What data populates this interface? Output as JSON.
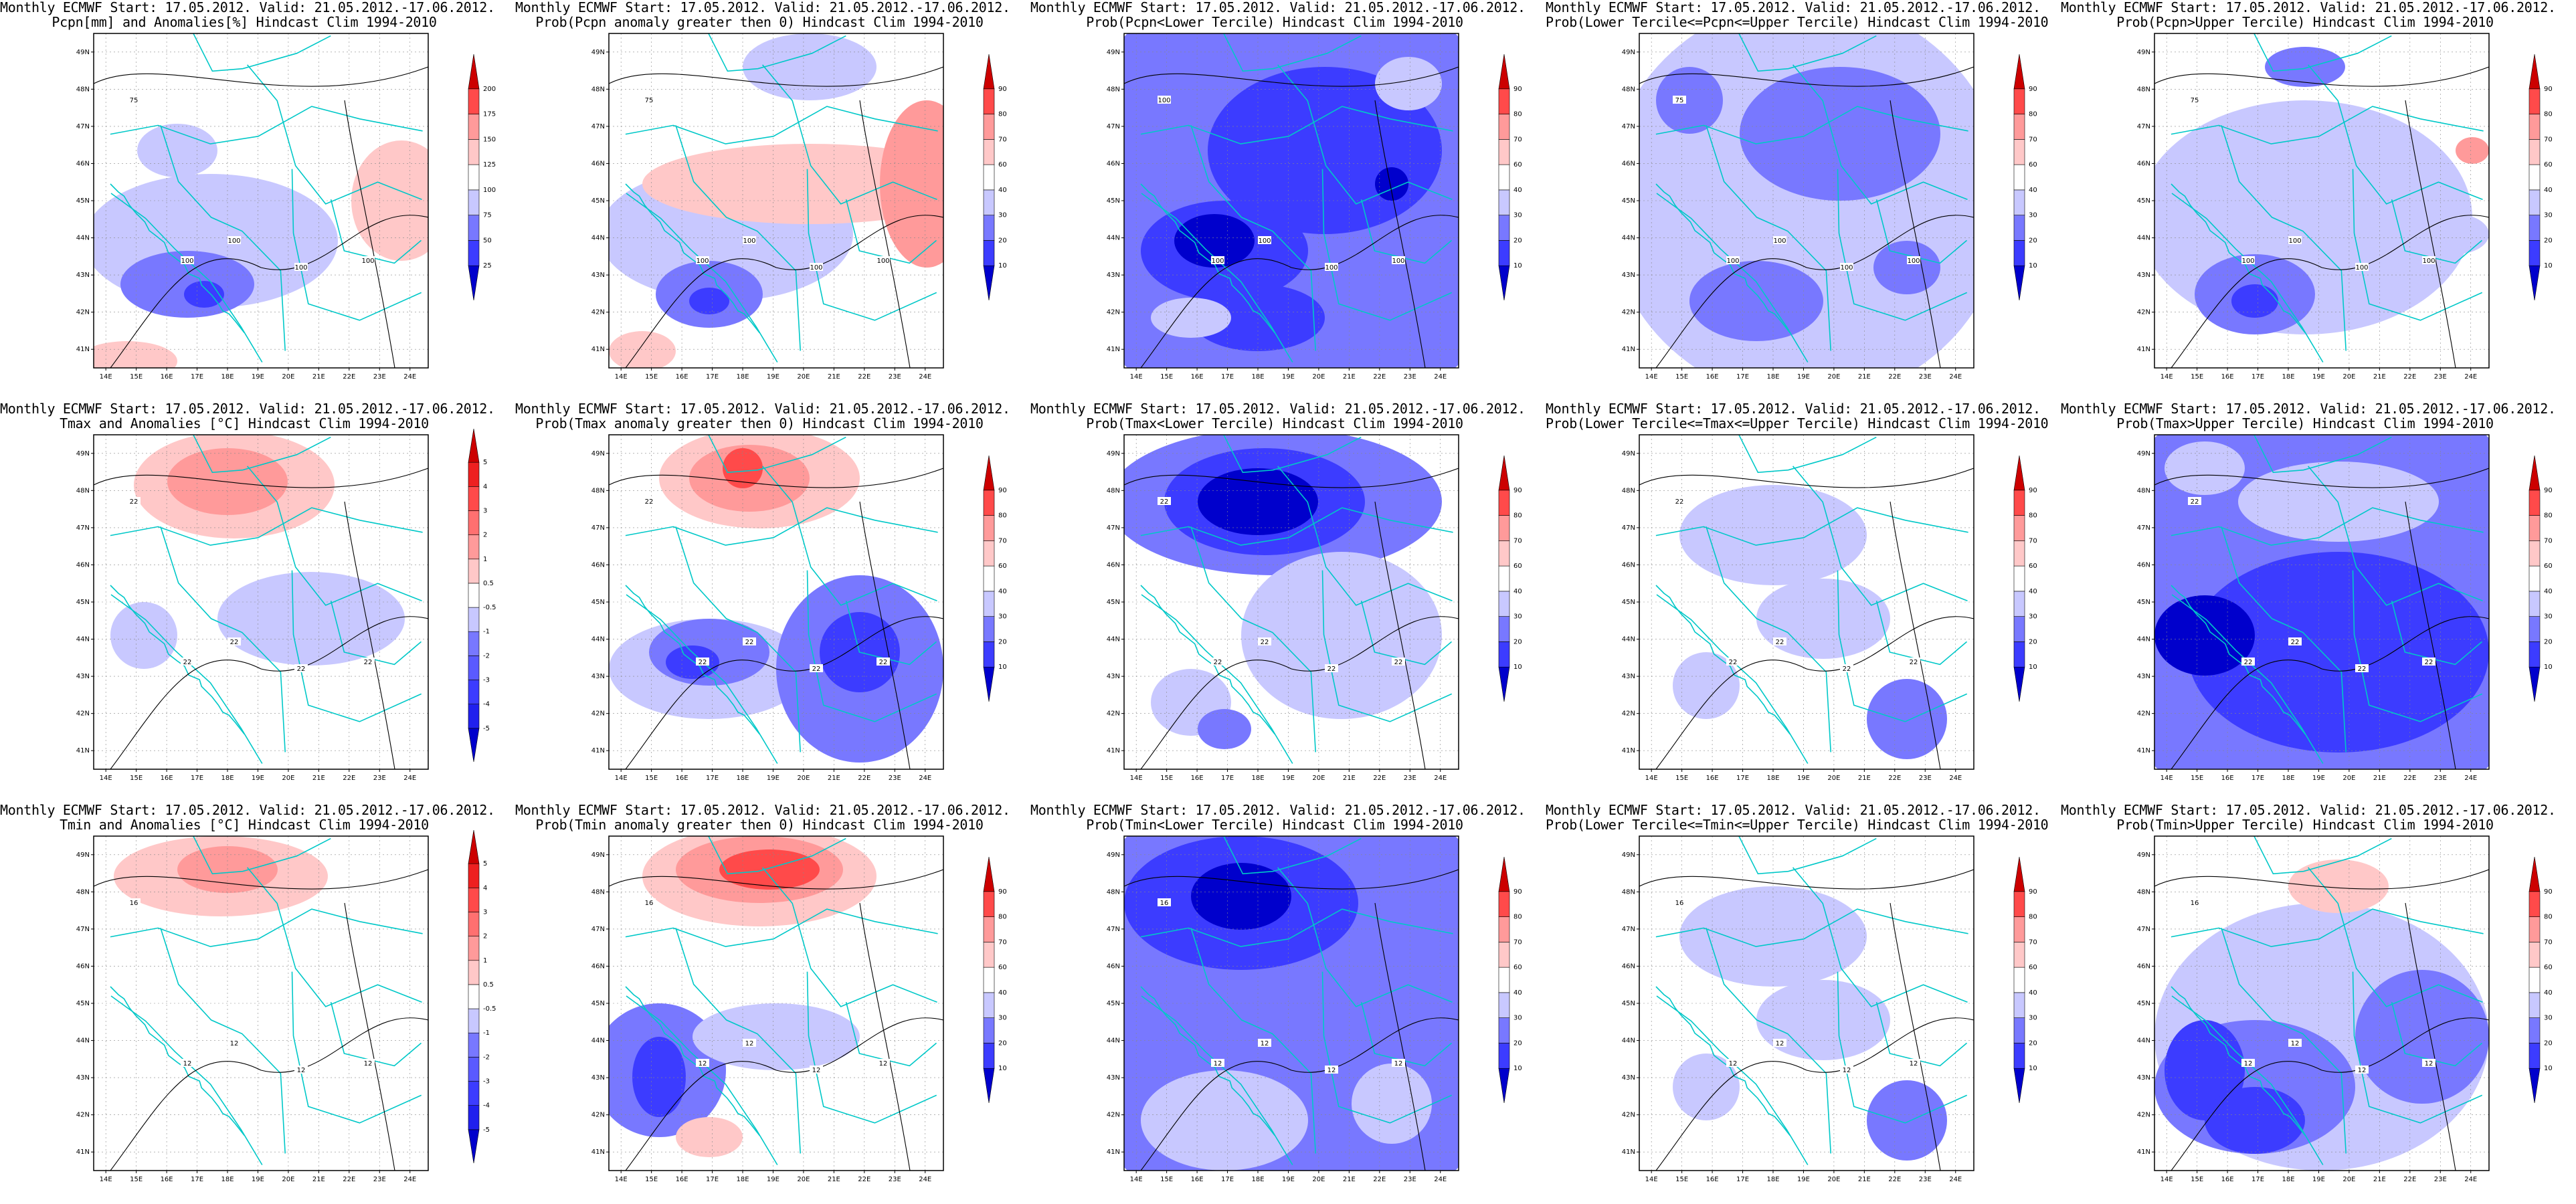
{
  "figure": {
    "header_line": "Monthly ECMWF Start: 17.05.2012. Valid: 21.05.2012.-17.06.2012.",
    "lat_labels": [
      "49N",
      "48N",
      "47N",
      "46N",
      "45N",
      "44N",
      "43N",
      "42N",
      "41N"
    ],
    "lon_labels": [
      "14E",
      "15E",
      "16E",
      "17E",
      "18E",
      "19E",
      "20E",
      "21E",
      "22E",
      "23E",
      "24E"
    ],
    "colors": {
      "blue_dark": "#0000cc",
      "blue_mid": "#3c3cff",
      "blue_light": "#7878ff",
      "blue_pale": "#c8c8ff",
      "red_pale": "#ffc8c8",
      "red_light": "#ff9a9a",
      "red_mid": "#ff4a4a",
      "red_dark": "#cc0000",
      "border_color": "#00c8c8",
      "contour_color": "#000000"
    },
    "colorbars": {
      "pcpn_anom": [
        "25",
        "50",
        "75",
        "100",
        "125",
        "150",
        "175",
        "200"
      ],
      "temp_anom": [
        "-5",
        "-4",
        "-3",
        "-2",
        "-1",
        "-0.5",
        "0.5",
        "1",
        "2",
        "3",
        "4",
        "5"
      ],
      "prob": [
        "10",
        "20",
        "30",
        "40",
        "60",
        "70",
        "80",
        "90"
      ]
    }
  },
  "panels": [
    {
      "row": 0,
      "col": 0,
      "subtitle": "Pcpn[mm] and Anomalies[%] Hindcast Clim 1994-2010",
      "colorbar": "pcpn_anom",
      "contour_labels": [
        "100",
        "100",
        "100",
        "100",
        "75"
      ],
      "pattern": "p_anom"
    },
    {
      "row": 0,
      "col": 1,
      "subtitle": "Prob(Pcpn anomaly greater then 0) Hindcast Clim 1994-2010",
      "colorbar": "prob",
      "contour_labels": [
        "100",
        "100",
        "100",
        "100",
        "75"
      ],
      "pattern": "p_pos"
    },
    {
      "row": 0,
      "col": 2,
      "subtitle": "Prob(Pcpn<Lower Tercile) Hindcast Clim 1994-2010",
      "colorbar": "prob",
      "contour_labels": [
        "100",
        "100",
        "100",
        "100",
        "100"
      ],
      "pattern": "p_low"
    },
    {
      "row": 0,
      "col": 3,
      "subtitle": "Prob(Lower Tercile<=Pcpn<=Upper Tercile) Hindcast Clim 1994-2010",
      "colorbar": "prob",
      "contour_labels": [
        "100",
        "100",
        "100",
        "100",
        "75"
      ],
      "pattern": "p_mid"
    },
    {
      "row": 0,
      "col": 4,
      "subtitle": "Prob(Pcpn>Upper Tercile) Hindcast Clim 1994-2010",
      "colorbar": "prob",
      "contour_labels": [
        "100",
        "100",
        "100",
        "100",
        "75"
      ],
      "pattern": "p_up"
    },
    {
      "row": 1,
      "col": 0,
      "subtitle": "Tmax and Anomalies [°C] Hindcast Clim 1994-2010",
      "colorbar": "temp_anom",
      "contour_labels": [
        "22",
        "22",
        "22",
        "22",
        "22"
      ],
      "pattern": "t_anom"
    },
    {
      "row": 1,
      "col": 1,
      "subtitle": "Prob(Tmax anomaly greater then 0) Hindcast Clim 1994-2010",
      "colorbar": "prob",
      "contour_labels": [
        "22",
        "22",
        "22",
        "22",
        "22"
      ],
      "pattern": "t_pos"
    },
    {
      "row": 1,
      "col": 2,
      "subtitle": "Prob(Tmax<Lower Tercile) Hindcast Clim 1994-2010",
      "colorbar": "prob",
      "contour_labels": [
        "22",
        "22",
        "22",
        "22",
        "22"
      ],
      "pattern": "tx_low"
    },
    {
      "row": 1,
      "col": 3,
      "subtitle": "Prob(Lower Tercile<=Tmax<=Upper Tercile) Hindcast Clim 1994-2010",
      "colorbar": "prob",
      "contour_labels": [
        "22",
        "22",
        "22",
        "22",
        "22"
      ],
      "pattern": "t_mid"
    },
    {
      "row": 1,
      "col": 4,
      "subtitle": "Prob(Tmax>Upper Tercile) Hindcast Clim 1994-2010",
      "colorbar": "prob",
      "contour_labels": [
        "22",
        "22",
        "22",
        "22",
        "22"
      ],
      "pattern": "tx_up"
    },
    {
      "row": 2,
      "col": 0,
      "subtitle": "Tmin and Anomalies [°C] Hindcast Clim 1994-2010",
      "colorbar": "temp_anom",
      "contour_labels": [
        "12",
        "12",
        "12",
        "12",
        "16"
      ],
      "pattern": "tn_anom"
    },
    {
      "row": 2,
      "col": 1,
      "subtitle": "Prob(Tmin anomaly greater then 0) Hindcast Clim 1994-2010",
      "colorbar": "prob",
      "contour_labels": [
        "12",
        "12",
        "12",
        "12",
        "16"
      ],
      "pattern": "tn_pos"
    },
    {
      "row": 2,
      "col": 2,
      "subtitle": "Prob(Tmin<Lower Tercile) Hindcast Clim 1994-2010",
      "colorbar": "prob",
      "contour_labels": [
        "12",
        "12",
        "12",
        "12",
        "16"
      ],
      "pattern": "tn_low"
    },
    {
      "row": 2,
      "col": 3,
      "subtitle": "Prob(Lower Tercile<=Tmin<=Upper Tercile) Hindcast Clim 1994-2010",
      "colorbar": "prob",
      "contour_labels": [
        "12",
        "12",
        "12",
        "12",
        "16"
      ],
      "pattern": "t_mid"
    },
    {
      "row": 2,
      "col": 4,
      "subtitle": "Prob(Tmin>Upper Tercile) Hindcast Clim 1994-2010",
      "colorbar": "prob",
      "contour_labels": [
        "12",
        "12",
        "12",
        "12",
        "16"
      ],
      "pattern": "tn_up"
    }
  ]
}
